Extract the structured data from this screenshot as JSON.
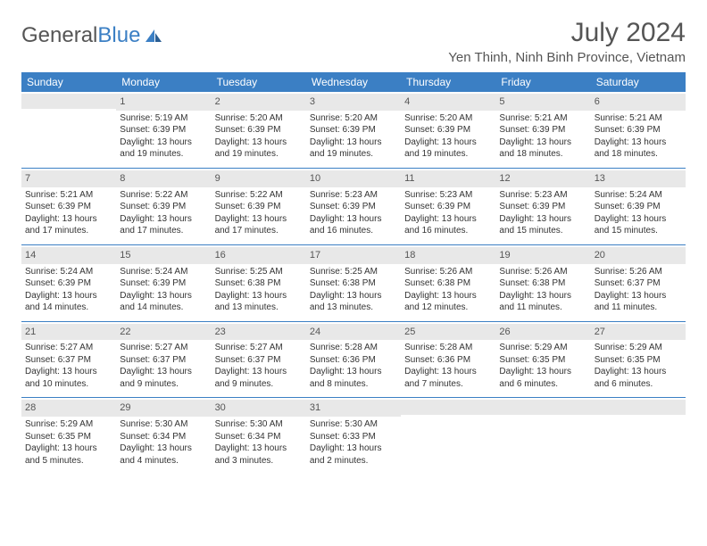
{
  "logo": {
    "text1": "General",
    "text2": "Blue"
  },
  "header": {
    "month_title": "July 2024",
    "location": "Yen Thinh, Ninh Binh Province, Vietnam"
  },
  "colors": {
    "header_bg": "#3b7fc4",
    "header_text": "#ffffff",
    "daynum_bg": "#e8e8e8",
    "border": "#3b7fc4",
    "body_text": "#333333"
  },
  "day_headers": [
    "Sunday",
    "Monday",
    "Tuesday",
    "Wednesday",
    "Thursday",
    "Friday",
    "Saturday"
  ],
  "weeks": [
    [
      {
        "n": "",
        "sr": "",
        "ss": "",
        "dl": ""
      },
      {
        "n": "1",
        "sr": "Sunrise: 5:19 AM",
        "ss": "Sunset: 6:39 PM",
        "dl": "Daylight: 13 hours and 19 minutes."
      },
      {
        "n": "2",
        "sr": "Sunrise: 5:20 AM",
        "ss": "Sunset: 6:39 PM",
        "dl": "Daylight: 13 hours and 19 minutes."
      },
      {
        "n": "3",
        "sr": "Sunrise: 5:20 AM",
        "ss": "Sunset: 6:39 PM",
        "dl": "Daylight: 13 hours and 19 minutes."
      },
      {
        "n": "4",
        "sr": "Sunrise: 5:20 AM",
        "ss": "Sunset: 6:39 PM",
        "dl": "Daylight: 13 hours and 19 minutes."
      },
      {
        "n": "5",
        "sr": "Sunrise: 5:21 AM",
        "ss": "Sunset: 6:39 PM",
        "dl": "Daylight: 13 hours and 18 minutes."
      },
      {
        "n": "6",
        "sr": "Sunrise: 5:21 AM",
        "ss": "Sunset: 6:39 PM",
        "dl": "Daylight: 13 hours and 18 minutes."
      }
    ],
    [
      {
        "n": "7",
        "sr": "Sunrise: 5:21 AM",
        "ss": "Sunset: 6:39 PM",
        "dl": "Daylight: 13 hours and 17 minutes."
      },
      {
        "n": "8",
        "sr": "Sunrise: 5:22 AM",
        "ss": "Sunset: 6:39 PM",
        "dl": "Daylight: 13 hours and 17 minutes."
      },
      {
        "n": "9",
        "sr": "Sunrise: 5:22 AM",
        "ss": "Sunset: 6:39 PM",
        "dl": "Daylight: 13 hours and 17 minutes."
      },
      {
        "n": "10",
        "sr": "Sunrise: 5:23 AM",
        "ss": "Sunset: 6:39 PM",
        "dl": "Daylight: 13 hours and 16 minutes."
      },
      {
        "n": "11",
        "sr": "Sunrise: 5:23 AM",
        "ss": "Sunset: 6:39 PM",
        "dl": "Daylight: 13 hours and 16 minutes."
      },
      {
        "n": "12",
        "sr": "Sunrise: 5:23 AM",
        "ss": "Sunset: 6:39 PM",
        "dl": "Daylight: 13 hours and 15 minutes."
      },
      {
        "n": "13",
        "sr": "Sunrise: 5:24 AM",
        "ss": "Sunset: 6:39 PM",
        "dl": "Daylight: 13 hours and 15 minutes."
      }
    ],
    [
      {
        "n": "14",
        "sr": "Sunrise: 5:24 AM",
        "ss": "Sunset: 6:39 PM",
        "dl": "Daylight: 13 hours and 14 minutes."
      },
      {
        "n": "15",
        "sr": "Sunrise: 5:24 AM",
        "ss": "Sunset: 6:39 PM",
        "dl": "Daylight: 13 hours and 14 minutes."
      },
      {
        "n": "16",
        "sr": "Sunrise: 5:25 AM",
        "ss": "Sunset: 6:38 PM",
        "dl": "Daylight: 13 hours and 13 minutes."
      },
      {
        "n": "17",
        "sr": "Sunrise: 5:25 AM",
        "ss": "Sunset: 6:38 PM",
        "dl": "Daylight: 13 hours and 13 minutes."
      },
      {
        "n": "18",
        "sr": "Sunrise: 5:26 AM",
        "ss": "Sunset: 6:38 PM",
        "dl": "Daylight: 13 hours and 12 minutes."
      },
      {
        "n": "19",
        "sr": "Sunrise: 5:26 AM",
        "ss": "Sunset: 6:38 PM",
        "dl": "Daylight: 13 hours and 11 minutes."
      },
      {
        "n": "20",
        "sr": "Sunrise: 5:26 AM",
        "ss": "Sunset: 6:37 PM",
        "dl": "Daylight: 13 hours and 11 minutes."
      }
    ],
    [
      {
        "n": "21",
        "sr": "Sunrise: 5:27 AM",
        "ss": "Sunset: 6:37 PM",
        "dl": "Daylight: 13 hours and 10 minutes."
      },
      {
        "n": "22",
        "sr": "Sunrise: 5:27 AM",
        "ss": "Sunset: 6:37 PM",
        "dl": "Daylight: 13 hours and 9 minutes."
      },
      {
        "n": "23",
        "sr": "Sunrise: 5:27 AM",
        "ss": "Sunset: 6:37 PM",
        "dl": "Daylight: 13 hours and 9 minutes."
      },
      {
        "n": "24",
        "sr": "Sunrise: 5:28 AM",
        "ss": "Sunset: 6:36 PM",
        "dl": "Daylight: 13 hours and 8 minutes."
      },
      {
        "n": "25",
        "sr": "Sunrise: 5:28 AM",
        "ss": "Sunset: 6:36 PM",
        "dl": "Daylight: 13 hours and 7 minutes."
      },
      {
        "n": "26",
        "sr": "Sunrise: 5:29 AM",
        "ss": "Sunset: 6:35 PM",
        "dl": "Daylight: 13 hours and 6 minutes."
      },
      {
        "n": "27",
        "sr": "Sunrise: 5:29 AM",
        "ss": "Sunset: 6:35 PM",
        "dl": "Daylight: 13 hours and 6 minutes."
      }
    ],
    [
      {
        "n": "28",
        "sr": "Sunrise: 5:29 AM",
        "ss": "Sunset: 6:35 PM",
        "dl": "Daylight: 13 hours and 5 minutes."
      },
      {
        "n": "29",
        "sr": "Sunrise: 5:30 AM",
        "ss": "Sunset: 6:34 PM",
        "dl": "Daylight: 13 hours and 4 minutes."
      },
      {
        "n": "30",
        "sr": "Sunrise: 5:30 AM",
        "ss": "Sunset: 6:34 PM",
        "dl": "Daylight: 13 hours and 3 minutes."
      },
      {
        "n": "31",
        "sr": "Sunrise: 5:30 AM",
        "ss": "Sunset: 6:33 PM",
        "dl": "Daylight: 13 hours and 2 minutes."
      },
      {
        "n": "",
        "sr": "",
        "ss": "",
        "dl": ""
      },
      {
        "n": "",
        "sr": "",
        "ss": "",
        "dl": ""
      },
      {
        "n": "",
        "sr": "",
        "ss": "",
        "dl": ""
      }
    ]
  ]
}
